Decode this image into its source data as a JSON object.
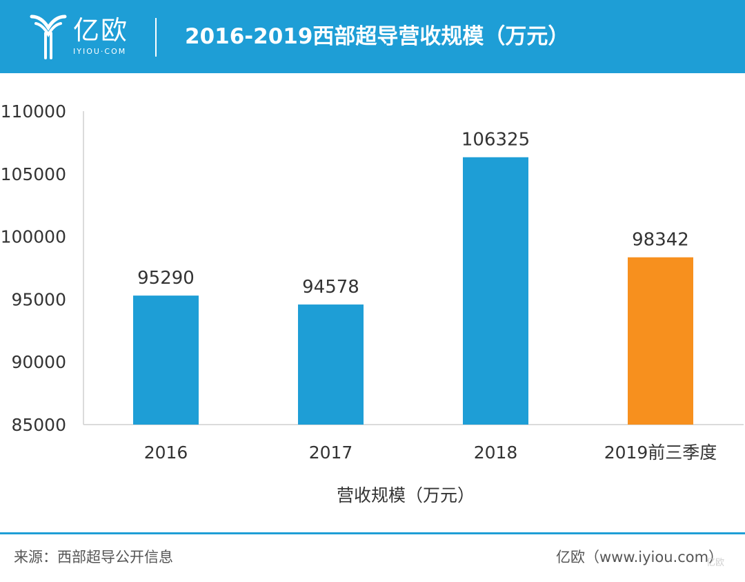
{
  "header": {
    "logo_text": "亿欧",
    "logo_sub": "IYIOU·COM",
    "title": "2016-2019西部超导营收规模（万元）",
    "color": "#1e9ed6"
  },
  "chart_data": {
    "type": "bar",
    "categories": [
      "2016",
      "2017",
      "2018",
      "2019前三季度"
    ],
    "values": [
      95290,
      94578,
      106325,
      98342
    ],
    "data_labels": [
      "95290",
      "94578",
      "106325",
      "98342"
    ],
    "colors": [
      "#1e9ed6",
      "#1e9ed6",
      "#1e9ed6",
      "#f7901e"
    ],
    "ylim": [
      85000,
      110000
    ],
    "yticks": [
      85000,
      90000,
      95000,
      100000,
      105000,
      110000
    ],
    "ytick_labels": [
      "85000",
      "90000",
      "95000",
      "100000",
      "105000",
      "110000"
    ],
    "xlabel": "营收规模（万元）",
    "ylabel": "",
    "grid": false,
    "legend": "none"
  },
  "footer": {
    "source": "来源：西部超导公开信息",
    "brand": "亿欧（www.iyiou.com）",
    "watermark": "亿欧"
  }
}
